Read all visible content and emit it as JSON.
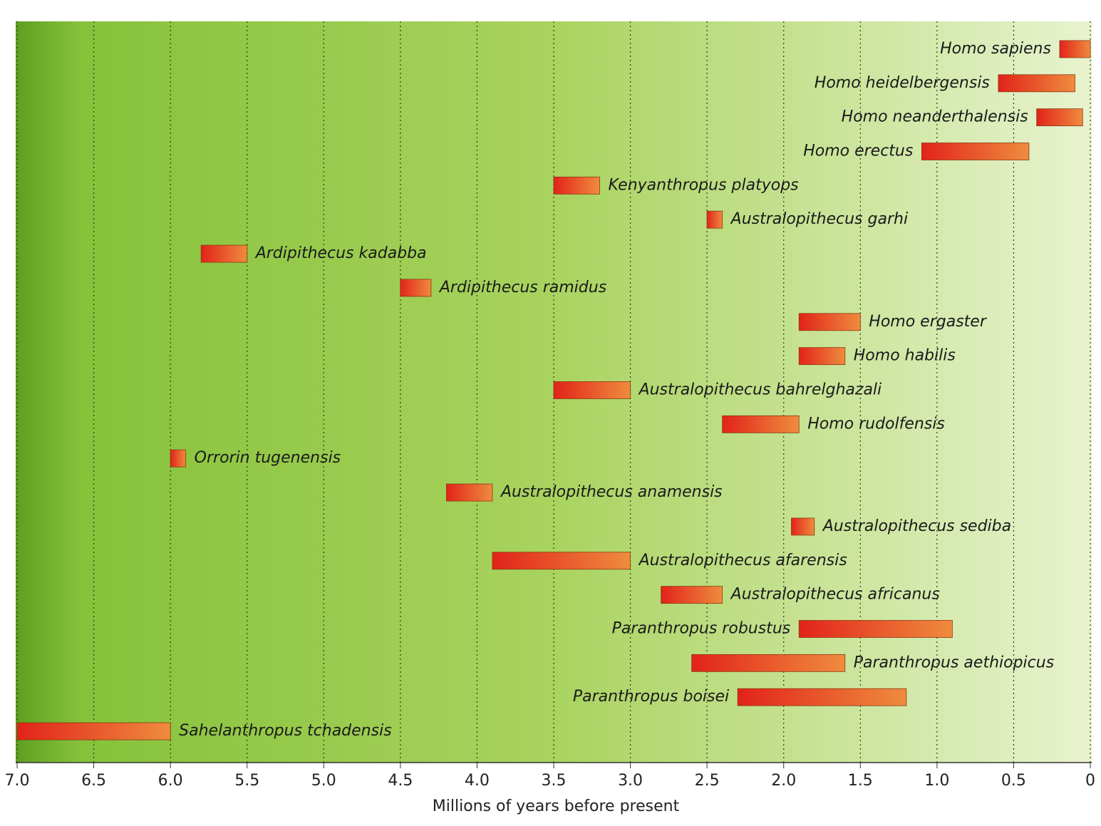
{
  "chart_data": {
    "type": "range",
    "x_label": "Millions of years before present",
    "categories": [
      "Homo sapiens",
      "Homo heidelbergensis",
      "Homo neanderthalensis",
      "Homo erectus",
      "Kenyanthropus platyops",
      "Australopithecus garhi",
      "Ardipithecus kadabba",
      "Ardipithecus ramidus",
      "Homo ergaster",
      "Homo habilis",
      "Australopithecus bahrelghazali",
      "Homo rudolfensis",
      "Orrorin tugenensis",
      "Australopithecus anamensis",
      "Australopithecus sediba",
      "Australopithecus afarensis",
      "Australopithecus africanus",
      "Paranthropus robustus",
      "Paranthropus aethiopicus",
      "Paranthropus boisei",
      "Sahelanthropus tchadensis"
    ],
    "start": [
      0.2,
      0.6,
      0.35,
      1.1,
      3.5,
      2.5,
      5.8,
      4.5,
      1.9,
      1.9,
      3.5,
      2.4,
      6.0,
      4.2,
      1.95,
      3.9,
      2.8,
      1.9,
      2.6,
      2.3,
      7.0
    ],
    "end": [
      0,
      0.1,
      0.05,
      0.4,
      3.2,
      2.4,
      5.5,
      4.3,
      1.5,
      1.6,
      3.0,
      1.9,
      5.9,
      3.9,
      1.8,
      3.0,
      2.4,
      0.9,
      1.6,
      1.2,
      6.0
    ],
    "bar_colors": [
      "#e2231a",
      "#ef8c3e"
    ],
    "xlim": [
      7,
      0
    ],
    "xticks": [
      {
        "value": 7,
        "label": "7.0"
      },
      6.5,
      {
        "value": 6,
        "label": "6.0"
      },
      5.5,
      {
        "value": 5,
        "label": "5.0"
      },
      4.5,
      {
        "value": 4,
        "label": "4.0"
      },
      3.5,
      {
        "value": 3,
        "label": "3.0"
      },
      2.5,
      {
        "value": 2,
        "label": "2.0"
      },
      1.5,
      {
        "value": 1,
        "label": "1.0"
      },
      0.5,
      0
    ],
    "grid": true
  }
}
